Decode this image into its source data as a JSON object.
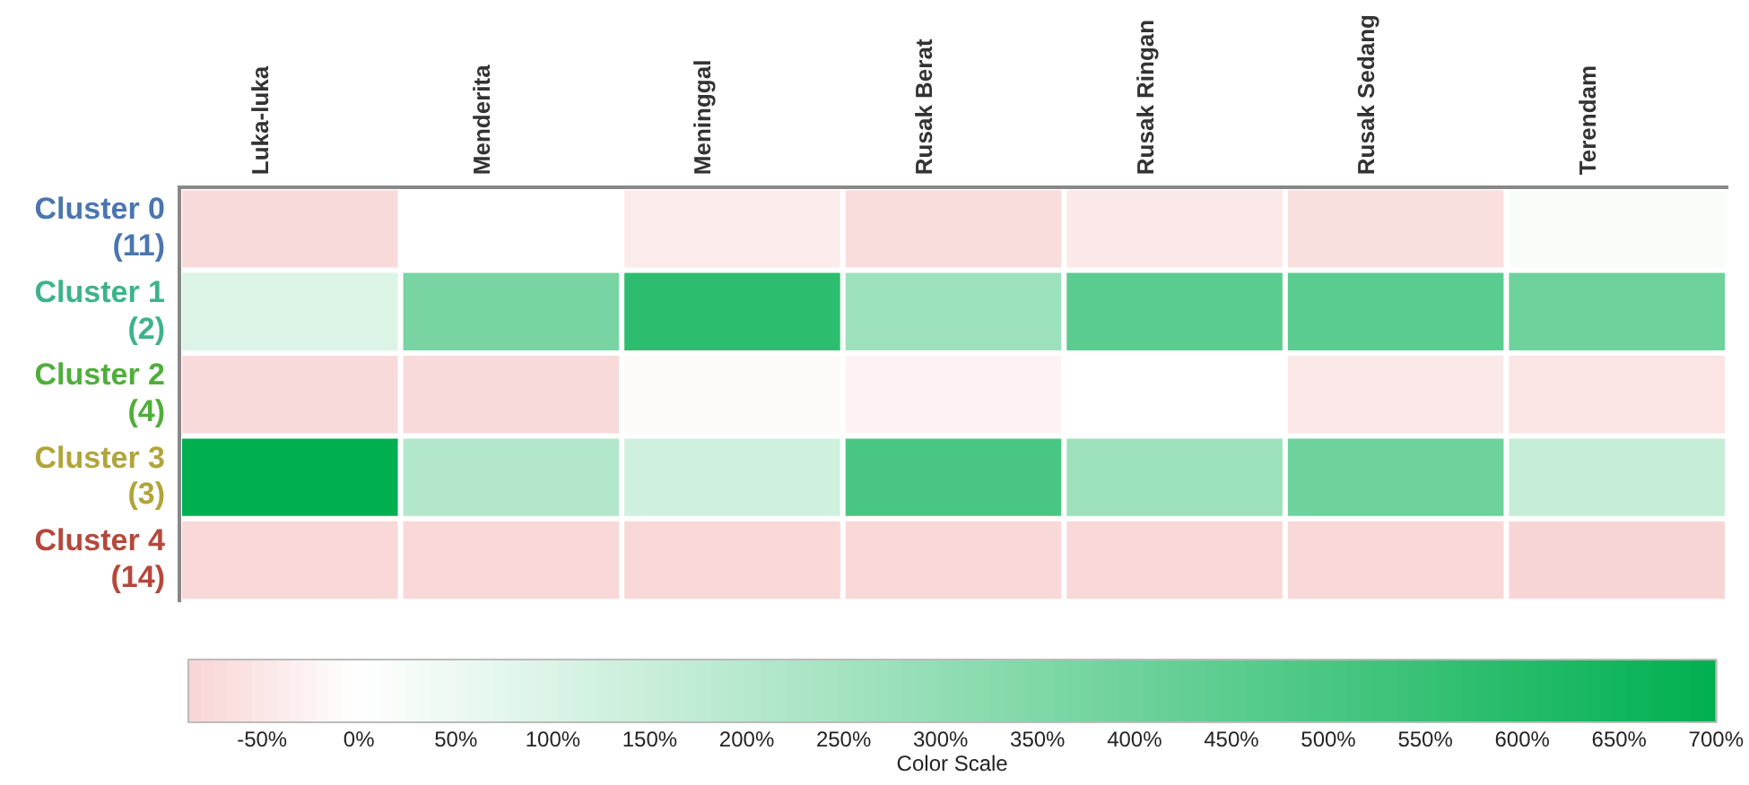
{
  "chart_data": {
    "type": "heatmap",
    "categories": [
      "Luka-luka",
      "Menderita",
      "Meninggal",
      "Rusak Berat",
      "Rusak Ringan",
      "Rusak Sedang",
      "Terendam"
    ],
    "y_categories": [
      "Cluster 0\n(11)",
      "Cluster 1\n(2)",
      "Cluster 2\n(4)",
      "Cluster 3\n(3)",
      "Cluster 4\n(14)"
    ],
    "cells": [
      [
        -75,
        0,
        -40,
        -70,
        -45,
        -65,
        20
      ],
      [
        100,
        370,
        580,
        270,
        450,
        450,
        400
      ],
      [
        -75,
        -75,
        -10,
        -25,
        0,
        -45,
        -55
      ],
      [
        700,
        210,
        130,
        500,
        270,
        400,
        160
      ],
      [
        -80,
        -80,
        -80,
        -80,
        -80,
        -80,
        -85
      ]
    ],
    "clim": [
      -88,
      700
    ],
    "cticks": [
      {
        "value": -50,
        "label": "-50%"
      },
      {
        "value": 0,
        "label": "0%"
      },
      {
        "value": 50,
        "label": "50%"
      },
      {
        "value": 100,
        "label": "100%"
      },
      {
        "value": 150,
        "label": "150%"
      },
      {
        "value": 200,
        "label": "200%"
      },
      {
        "value": 250,
        "label": "250%"
      },
      {
        "value": 300,
        "label": "300%"
      },
      {
        "value": 350,
        "label": "350%"
      },
      {
        "value": 400,
        "label": "400%"
      },
      {
        "value": 450,
        "label": "450%"
      },
      {
        "value": 500,
        "label": "500%"
      },
      {
        "value": 550,
        "label": "550%"
      },
      {
        "value": 600,
        "label": "600%"
      },
      {
        "value": 650,
        "label": "650%"
      },
      {
        "value": 700,
        "label": "700%"
      }
    ],
    "clabel": "Color Scale"
  }
}
